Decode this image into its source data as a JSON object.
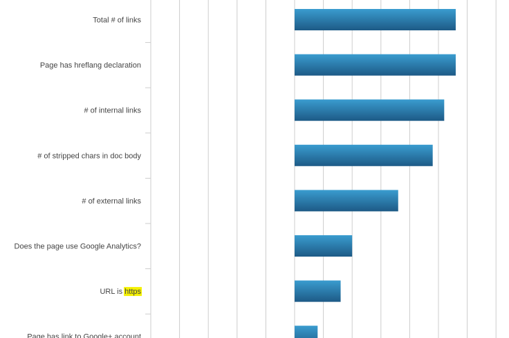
{
  "chart_data": {
    "type": "bar",
    "orientation": "horizontal",
    "categories": [
      "Total # of links",
      "Page has hreflang declaration",
      "# of internal links",
      "# of stripped chars in doc body",
      "# of external links",
      "Does the page use Google Analytics?",
      "URL is https",
      "Page has link to Google+ account"
    ],
    "series": [
      {
        "values": [
          0.28,
          0.28,
          0.26,
          0.24,
          0.18,
          0.1,
          0.08,
          0.04
        ]
      }
    ],
    "highlighted_term": "https",
    "xlim": [
      -0.25,
      0.36
    ],
    "grid": true,
    "colors": {
      "bar_top": "#3a9ccf",
      "bar_bottom": "#1d5a86",
      "grid": "#cccccc",
      "label": "#444444",
      "highlight": "#f4f000"
    }
  }
}
